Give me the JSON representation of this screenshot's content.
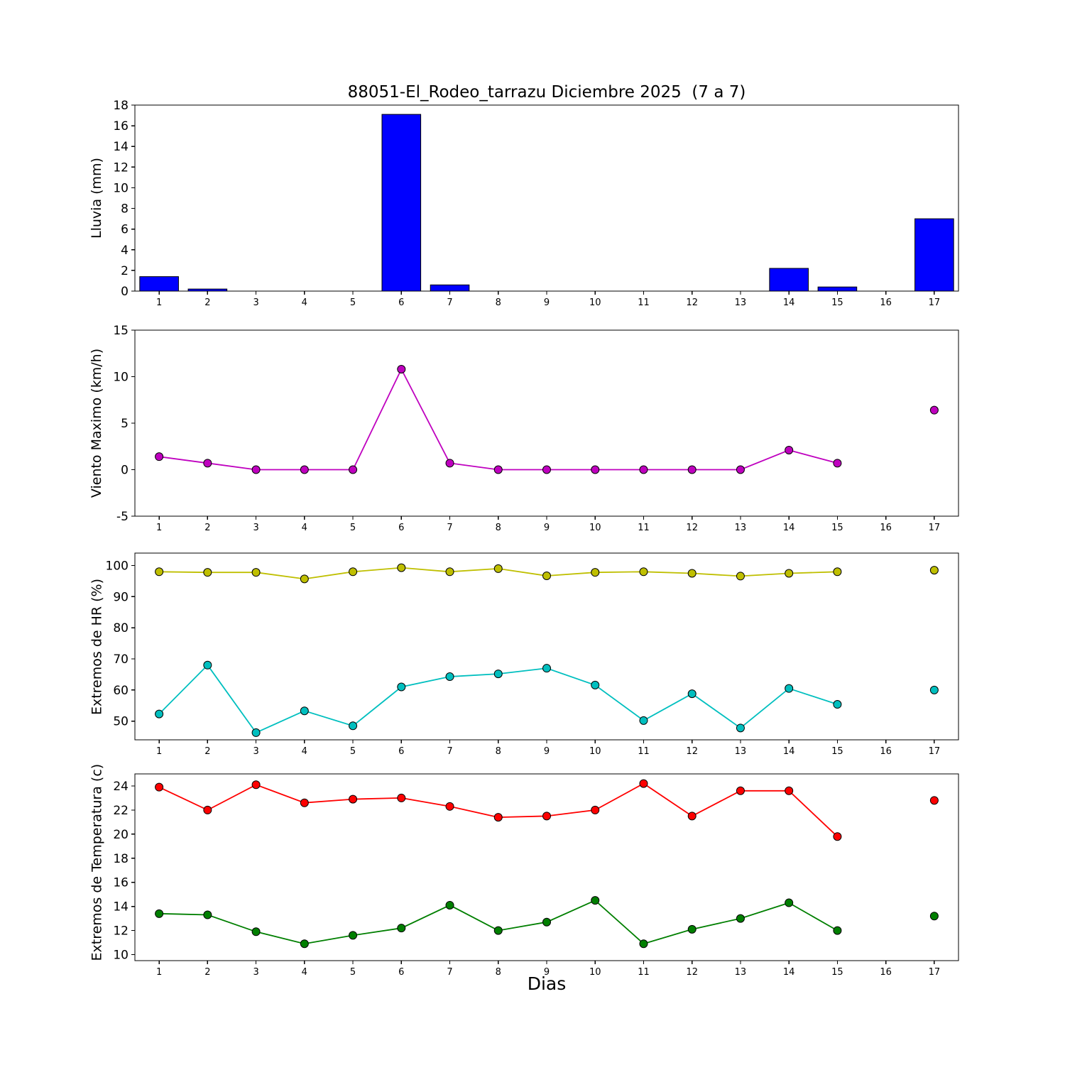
{
  "figure": {
    "title": "88051-El_Rodeo_tarrazu Diciembre 2025  (7 a 7)",
    "background": "#ffffff",
    "frame_color": "#000000"
  },
  "x_axis": {
    "label": "Dias",
    "ticks": [
      1,
      2,
      3,
      4,
      5,
      6,
      7,
      8,
      9,
      10,
      11,
      12,
      13,
      14,
      15,
      16,
      17
    ],
    "xlim": [
      0.5,
      17.5
    ]
  },
  "chart_data": [
    {
      "type": "bar",
      "ylabel": "Lluvia (mm)",
      "ylim": [
        0,
        18
      ],
      "yticks": [
        0,
        2,
        4,
        6,
        8,
        10,
        12,
        14,
        16,
        18
      ],
      "bar_color": "#0000ff",
      "categories": [
        1,
        2,
        3,
        4,
        5,
        6,
        7,
        8,
        9,
        10,
        11,
        12,
        13,
        14,
        15,
        16,
        17
      ],
      "values": [
        1.4,
        0.2,
        0,
        0,
        0,
        17.1,
        0.6,
        0,
        0,
        0,
        0,
        0,
        0,
        2.2,
        0.4,
        0,
        7.0
      ]
    },
    {
      "type": "line",
      "ylabel": "Viento Maximo (km/h)",
      "ylim": [
        -5,
        15
      ],
      "yticks": [
        -5,
        0,
        5,
        10,
        15
      ],
      "series": [
        {
          "name": "viento-maximo",
          "color": "#bf00bf",
          "values": [
            1.4,
            0.7,
            0,
            0,
            0,
            10.8,
            0.7,
            0,
            0,
            0,
            0,
            0,
            0,
            2.1,
            0.7,
            null,
            6.4
          ]
        }
      ]
    },
    {
      "type": "line",
      "ylabel": "Extremos de HR (%)",
      "ylim": [
        44,
        104
      ],
      "yticks": [
        50,
        60,
        70,
        80,
        90,
        100
      ],
      "series": [
        {
          "name": "hr-maxima",
          "color": "#bfbf00",
          "values": [
            98.0,
            97.8,
            97.8,
            95.7,
            98.0,
            99.3,
            98.0,
            99.0,
            96.7,
            97.8,
            98.0,
            97.5,
            96.6,
            97.5,
            98.0,
            null,
            98.5
          ]
        },
        {
          "name": "hr-minima",
          "color": "#00bfbf",
          "values": [
            52.3,
            68.0,
            46.3,
            53.3,
            48.5,
            61.0,
            64.3,
            65.2,
            67.0,
            61.6,
            50.2,
            58.8,
            47.8,
            60.5,
            55.4,
            null,
            60.0
          ]
        }
      ]
    },
    {
      "type": "line",
      "ylabel": "Extremos de Temperatura (c)",
      "ylim": [
        9.5,
        25
      ],
      "yticks": [
        10,
        12,
        14,
        16,
        18,
        20,
        22,
        24
      ],
      "series": [
        {
          "name": "temperatura-maxima",
          "color": "#ff0000",
          "values": [
            23.9,
            22.0,
            24.1,
            22.6,
            22.9,
            23.0,
            22.3,
            21.4,
            21.5,
            22.0,
            24.2,
            21.5,
            23.6,
            23.6,
            19.8,
            null,
            22.8
          ]
        },
        {
          "name": "temperatura-minima",
          "color": "#007f00",
          "values": [
            13.4,
            13.3,
            11.9,
            10.9,
            11.6,
            12.2,
            14.1,
            12.0,
            12.7,
            14.5,
            10.9,
            12.1,
            13.0,
            14.3,
            12.0,
            null,
            13.2
          ]
        }
      ]
    }
  ]
}
